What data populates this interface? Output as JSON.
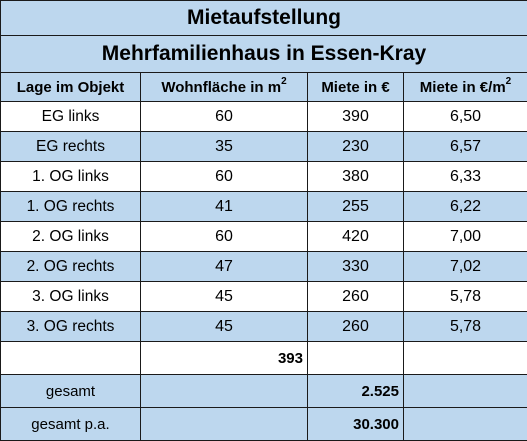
{
  "title": "Mietaufstellung",
  "subtitle": "Mehrfamilienhaus in Essen-Kray",
  "columns": {
    "lage": "Lage im Objekt",
    "wohnflaeche": "Wohnfläche in m",
    "wohnflaeche_sup": "2",
    "miete": "Miete in €",
    "miete_qm": "Miete in €/m",
    "miete_qm_sup": "2"
  },
  "rows": [
    {
      "lage": "EG links",
      "flaeche": "60",
      "miete": "390",
      "qm": "6,50"
    },
    {
      "lage": "EG rechts",
      "flaeche": "35",
      "miete": "230",
      "qm": "6,57"
    },
    {
      "lage": "1. OG links",
      "flaeche": "60",
      "miete": "380",
      "qm": "6,33"
    },
    {
      "lage": "1. OG rechts",
      "flaeche": "41",
      "miete": "255",
      "qm": "6,22"
    },
    {
      "lage": "2. OG links",
      "flaeche": "60",
      "miete": "420",
      "qm": "7,00"
    },
    {
      "lage": "2. OG rechts",
      "flaeche": "47",
      "miete": "330",
      "qm": "7,02"
    },
    {
      "lage": "3. OG links",
      "flaeche": "45",
      "miete": "260",
      "qm": "5,78"
    },
    {
      "lage": "3. OG rechts",
      "flaeche": "45",
      "miete": "260",
      "qm": "5,78"
    }
  ],
  "totals": {
    "flaeche_sum": "393",
    "gesamt_label": "gesamt",
    "gesamt_value": "2.525",
    "gesamt_pa_label": "gesamt p.a.",
    "gesamt_pa_value": "30.300"
  },
  "colors": {
    "blue": "#bdd7ee",
    "white": "#ffffff",
    "border": "#1a1a1a"
  }
}
